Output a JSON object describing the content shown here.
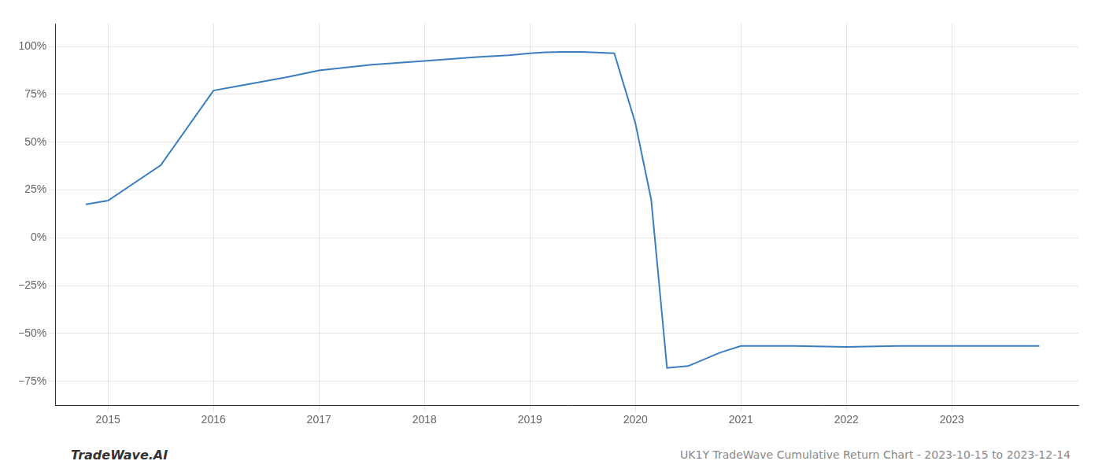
{
  "chart_data": {
    "type": "line",
    "x": [
      2014.79,
      2015.0,
      2015.5,
      2016.0,
      2016.3,
      2016.7,
      2017.0,
      2017.5,
      2018.0,
      2018.5,
      2018.8,
      2019.0,
      2019.15,
      2019.3,
      2019.5,
      2019.8,
      2020.0,
      2020.15,
      2020.3,
      2020.5,
      2020.8,
      2021.0,
      2021.5,
      2022.0,
      2022.5,
      2023.0,
      2023.5,
      2023.83
    ],
    "values": [
      0.175,
      0.195,
      0.38,
      0.77,
      0.8,
      0.84,
      0.875,
      0.905,
      0.925,
      0.945,
      0.955,
      0.965,
      0.97,
      0.972,
      0.972,
      0.965,
      0.6,
      0.2,
      -0.68,
      -0.67,
      -0.6,
      -0.565,
      -0.565,
      -0.57,
      -0.565,
      -0.565,
      -0.565,
      -0.565
    ],
    "color": "#3a7ebf",
    "xlim": [
      2014.5,
      2024.2
    ],
    "ylim": [
      -0.875,
      1.12
    ],
    "xticks": [
      2015,
      2016,
      2017,
      2018,
      2019,
      2020,
      2021,
      2022,
      2023
    ],
    "yticks": [
      {
        "value": -0.75,
        "label": "−75%"
      },
      {
        "value": -0.5,
        "label": "−50%"
      },
      {
        "value": -0.25,
        "label": "−25%"
      },
      {
        "value": 0.0,
        "label": "0%"
      },
      {
        "value": 0.25,
        "label": "25%"
      },
      {
        "value": 0.5,
        "label": "50%"
      },
      {
        "value": 0.75,
        "label": "75%"
      },
      {
        "value": 1.0,
        "label": "100%"
      }
    ],
    "annotations": [
      "TradeWave.AI",
      "UK1Y TradeWave Cumulative Return Chart - 2023-10-15 to 2023-12-14"
    ],
    "grid": true
  }
}
